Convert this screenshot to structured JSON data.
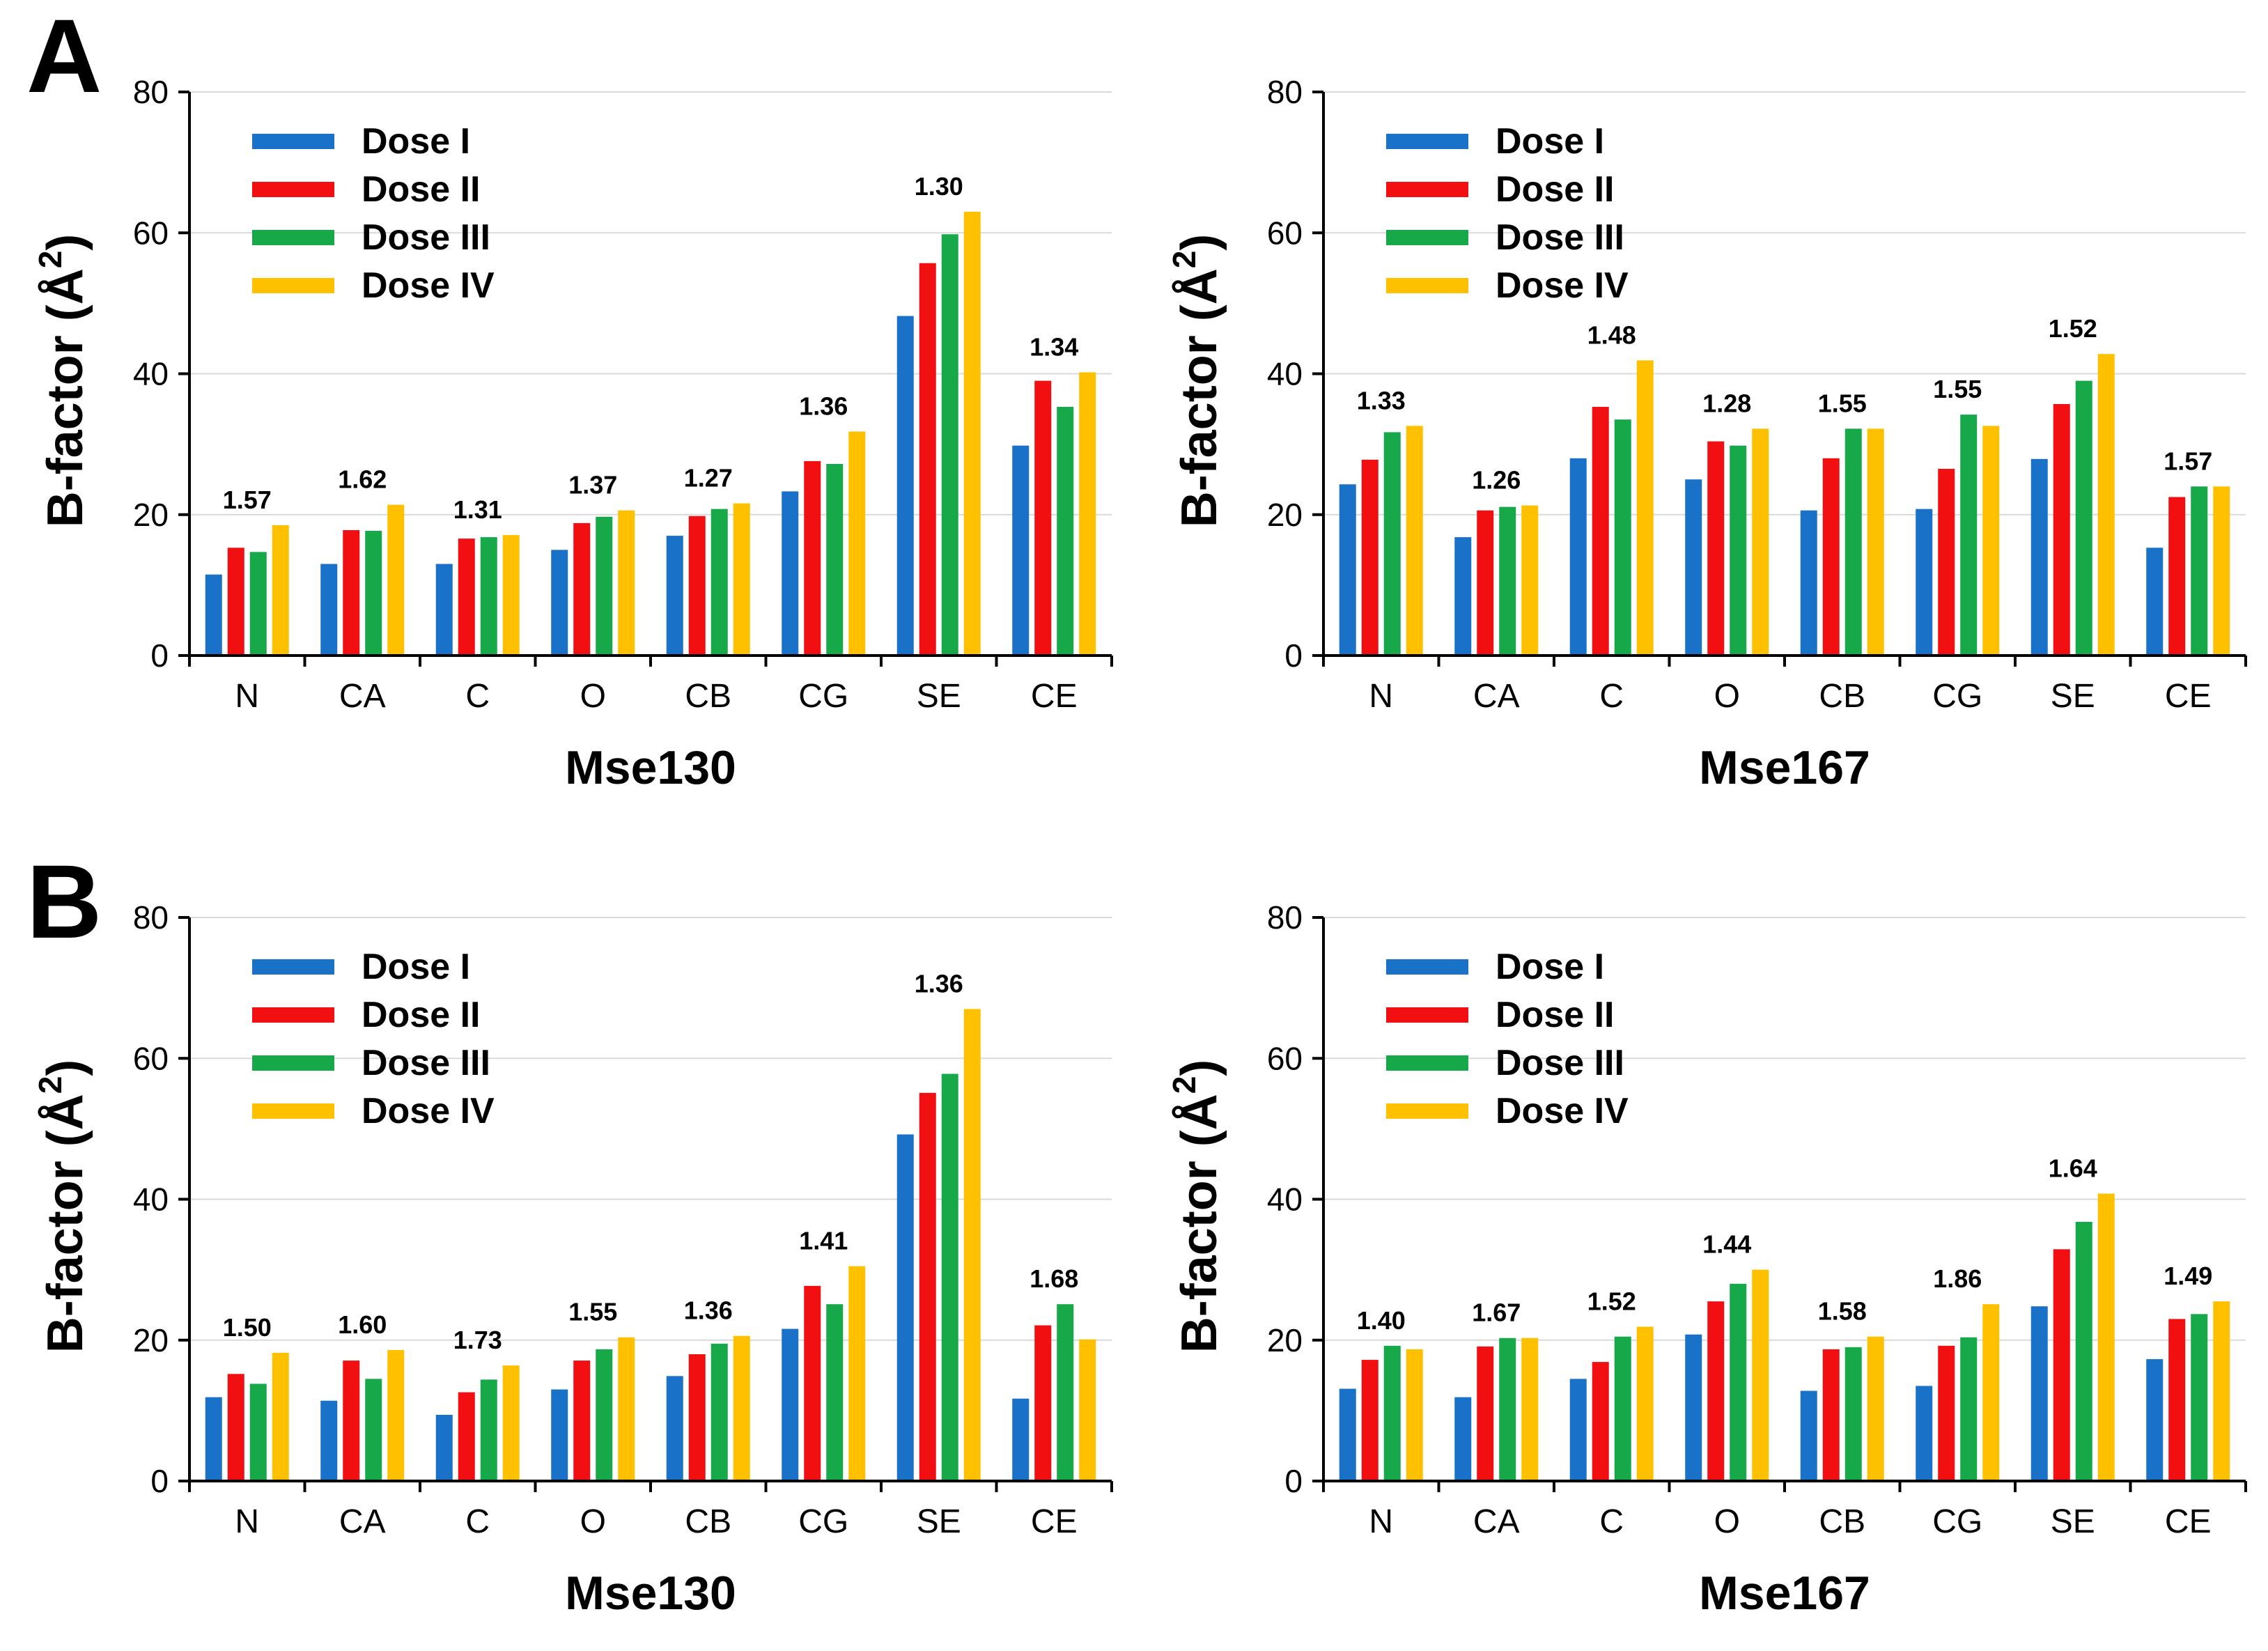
{
  "panel_labels": [
    "A",
    "B"
  ],
  "colors": {
    "dose_1": "#1971c8",
    "dose_2": "#f20f12",
    "dose_3": "#17a84a",
    "dose_4": "#ffc000",
    "axis": "#000000",
    "grid": "#d9d9d9"
  },
  "chart_data": [
    {
      "type": "bar",
      "panel": "A",
      "title": "",
      "xlabel": "Mse130",
      "ylabel": "B-factor (Å²)",
      "ylabel_text": "B-factor (Å",
      "ylabel_superscript": "2",
      "ylabel_close": ")",
      "ylim": [
        0,
        80
      ],
      "yticks": [
        "0",
        "20",
        "40",
        "60",
        "80"
      ],
      "categories": [
        "N",
        "CA",
        "C",
        "O",
        "CB",
        "CG",
        "SE",
        "CE"
      ],
      "series": [
        {
          "name": "Dose I",
          "values": [
            11.5,
            13.0,
            13.0,
            15.0,
            17.0,
            23.3,
            48.2,
            29.8
          ]
        },
        {
          "name": "Dose II",
          "values": [
            15.3,
            17.8,
            16.6,
            18.8,
            19.8,
            27.6,
            55.7,
            39.0
          ]
        },
        {
          "name": "Dose III",
          "values": [
            14.7,
            17.7,
            16.8,
            19.7,
            20.8,
            27.2,
            59.8,
            35.3
          ]
        },
        {
          "name": "Dose IV",
          "values": [
            18.5,
            21.4,
            17.1,
            20.6,
            21.6,
            31.8,
            63.0,
            40.2
          ]
        }
      ],
      "annotations": [
        "1.57",
        "1.62",
        "1.31",
        "1.37",
        "1.27",
        "1.36",
        "1.30",
        "1.34"
      ],
      "legend_position": "top-left"
    },
    {
      "type": "bar",
      "panel": "A",
      "title": "",
      "xlabel": "Mse167",
      "ylabel": "B-factor (Å²)",
      "ylabel_text": "B-factor (Å",
      "ylabel_superscript": "2",
      "ylabel_close": ")",
      "ylim": [
        0,
        80
      ],
      "yticks": [
        "0",
        "20",
        "40",
        "60",
        "80"
      ],
      "categories": [
        "N",
        "CA",
        "C",
        "O",
        "CB",
        "CG",
        "SE",
        "CE"
      ],
      "series": [
        {
          "name": "Dose I",
          "values": [
            24.3,
            16.8,
            28.0,
            25.0,
            20.6,
            20.8,
            27.9,
            15.3
          ]
        },
        {
          "name": "Dose II",
          "values": [
            27.8,
            20.6,
            35.3,
            30.4,
            28.0,
            26.5,
            35.7,
            22.5
          ]
        },
        {
          "name": "Dose III",
          "values": [
            31.7,
            21.1,
            33.5,
            29.8,
            32.2,
            34.2,
            39.0,
            24.0
          ]
        },
        {
          "name": "Dose IV",
          "values": [
            32.6,
            21.3,
            41.9,
            32.2,
            32.2,
            32.6,
            42.8,
            24.0
          ]
        }
      ],
      "annotations": [
        "1.33",
        "1.26",
        "1.48",
        "1.28",
        "1.55",
        "1.55",
        "1.52",
        "1.57"
      ],
      "legend_position": "top-left"
    },
    {
      "type": "bar",
      "panel": "B",
      "title": "",
      "xlabel": "Mse130",
      "ylabel": "B-factor (Å²)",
      "ylabel_text": "B-factor (Å",
      "ylabel_superscript": "2",
      "ylabel_close": ")",
      "ylim": [
        0,
        80
      ],
      "yticks": [
        "0",
        "20",
        "40",
        "60",
        "80"
      ],
      "categories": [
        "N",
        "CA",
        "C",
        "O",
        "CB",
        "CG",
        "SE",
        "CE"
      ],
      "series": [
        {
          "name": "Dose I",
          "values": [
            11.9,
            11.4,
            9.4,
            13.0,
            14.9,
            21.6,
            49.2,
            11.7
          ]
        },
        {
          "name": "Dose II",
          "values": [
            15.2,
            17.1,
            12.6,
            17.1,
            18.0,
            27.7,
            55.1,
            22.1
          ]
        },
        {
          "name": "Dose III",
          "values": [
            13.8,
            14.5,
            14.4,
            18.7,
            19.5,
            25.1,
            57.8,
            25.1
          ]
        },
        {
          "name": "Dose IV",
          "values": [
            18.2,
            18.6,
            16.4,
            20.4,
            20.6,
            30.5,
            67.0,
            20.1
          ]
        }
      ],
      "annotations": [
        "1.50",
        "1.60",
        "1.73",
        "1.55",
        "1.36",
        "1.41",
        "1.36",
        "1.68"
      ],
      "legend_position": "top-left"
    },
    {
      "type": "bar",
      "panel": "B",
      "title": "",
      "xlabel": "Mse167",
      "ylabel": "B-factor (Å²)",
      "ylabel_text": "B-factor (Å",
      "ylabel_superscript": "2",
      "ylabel_close": ")",
      "ylim": [
        0,
        80
      ],
      "yticks": [
        "0",
        "20",
        "40",
        "60",
        "80"
      ],
      "categories": [
        "N",
        "CA",
        "C",
        "O",
        "CB",
        "CG",
        "SE",
        "CE"
      ],
      "series": [
        {
          "name": "Dose I",
          "values": [
            13.1,
            11.9,
            14.5,
            20.8,
            12.8,
            13.5,
            24.8,
            17.3
          ]
        },
        {
          "name": "Dose II",
          "values": [
            17.2,
            19.1,
            16.9,
            25.5,
            18.7,
            19.2,
            32.9,
            23.0
          ]
        },
        {
          "name": "Dose III",
          "values": [
            19.2,
            20.3,
            20.5,
            28.0,
            19.0,
            20.4,
            36.8,
            23.7
          ]
        },
        {
          "name": "Dose IV",
          "values": [
            18.7,
            20.3,
            21.9,
            30.0,
            20.5,
            25.1,
            40.8,
            25.5
          ]
        }
      ],
      "annotations": [
        "1.40",
        "1.67",
        "1.52",
        "1.44",
        "1.58",
        "1.86",
        "1.64",
        "1.49"
      ],
      "legend_position": "top-left"
    }
  ]
}
